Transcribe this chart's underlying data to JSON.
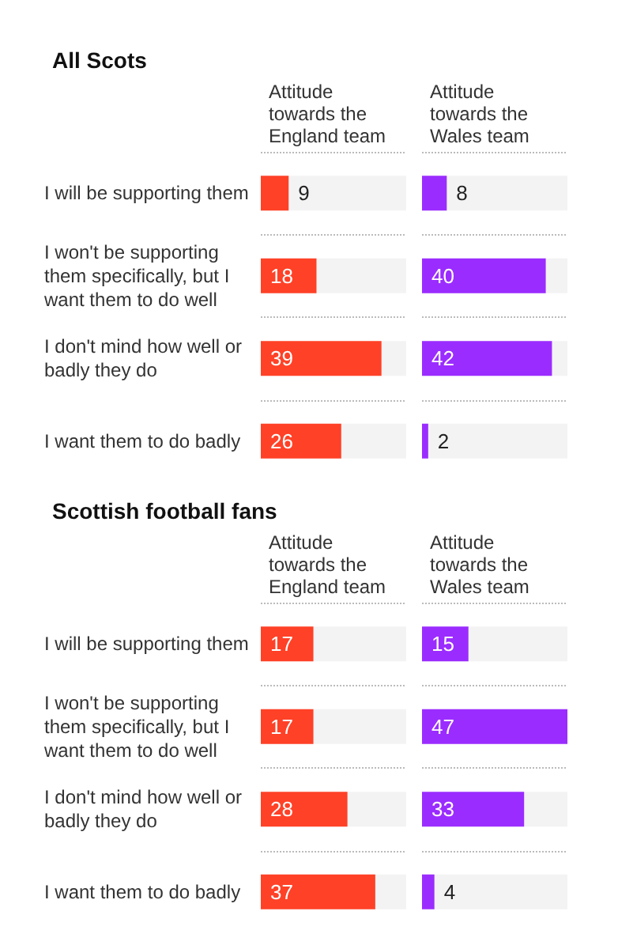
{
  "chart_data": [
    {
      "type": "bar",
      "orientation": "horizontal",
      "title": "All Scots",
      "subtitle": "Attitude towards the England team",
      "categories": [
        "I will be supporting them",
        "I won't be supporting them specifically, but I want them to do well",
        "I don't mind how well or badly they do",
        "I want them to do badly"
      ],
      "series": [
        {
          "color": "#ff4127",
          "values": [
            9,
            18,
            39,
            26
          ]
        }
      ],
      "data_labels": true,
      "tick_labels": "y",
      "grid": "y"
    },
    {
      "type": "bar",
      "orientation": "horizontal",
      "subtitle": "Attitude towards the Wales team",
      "categories": [
        "I will be supporting them",
        "I won't be supporting them specifically, but I want them to do well",
        "I don't mind how well or badly they do",
        "I want them to do badly"
      ],
      "series": [
        {
          "color": "#9b2cff",
          "values": [
            8,
            40,
            42,
            2
          ]
        }
      ],
      "data_labels": true,
      "tick_labels": false,
      "grid": "y"
    },
    {
      "type": "bar",
      "orientation": "horizontal",
      "title": "Scottish football fans",
      "subtitle": "Attitude towards the England team",
      "categories": [
        "I will be supporting them",
        "I won't be supporting them specifically, but I want them to do well",
        "I don't mind how well or badly they do",
        "I want them to do badly"
      ],
      "series": [
        {
          "color": "#ff4127",
          "values": [
            17,
            17,
            28,
            37
          ]
        }
      ],
      "data_labels": true,
      "tick_labels": "y",
      "grid": "y"
    },
    {
      "type": "bar",
      "orientation": "horizontal",
      "subtitle": "Attitude towards the Wales team",
      "categories": [
        "I will be supporting them",
        "I won't be supporting them specifically, but I want them to do well",
        "I don't mind how well or badly they do",
        "I want them to do badly"
      ],
      "series": [
        {
          "color": "#9b2cff",
          "values": [
            15,
            47,
            33,
            4
          ]
        }
      ],
      "data_labels": true,
      "tick_labels": false,
      "grid": "y"
    }
  ]
}
